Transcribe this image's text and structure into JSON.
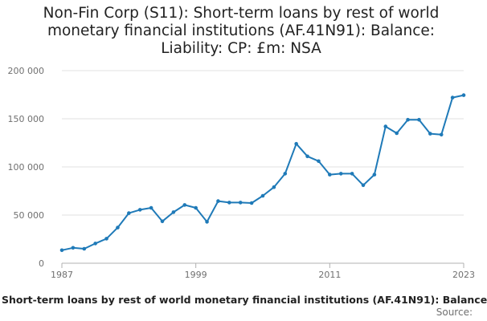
{
  "chart_data": {
    "type": "line",
    "title": "Non-Fin Corp (S11): Short-term loans by rest of world monetary financial institutions (AF.41N91): Balance: Liability: CP: £m: NSA",
    "xlabel": "",
    "ylabel": "",
    "x": [
      1987,
      1988,
      1989,
      1990,
      1991,
      1992,
      1993,
      1994,
      1995,
      1996,
      1997,
      1998,
      1999,
      2000,
      2001,
      2002,
      2003,
      2004,
      2005,
      2006,
      2007,
      2008,
      2009,
      2010,
      2011,
      2012,
      2013,
      2014,
      2015,
      2016,
      2017,
      2018,
      2019,
      2020,
      2021,
      2022,
      2023
    ],
    "series": [
      {
        "name": "Short-term loans by rest of world monetary financial institutions (AF.41N91): Balance",
        "color": "#1f7ab8",
        "values": [
          13500,
          16000,
          15000,
          20500,
          25500,
          37000,
          52000,
          55500,
          57500,
          43500,
          53000,
          60500,
          57500,
          43000,
          64500,
          63000,
          63000,
          62500,
          70000,
          79000,
          93000,
          124000,
          111000,
          106000,
          92000,
          93000,
          93000,
          81000,
          92000,
          142000,
          135000,
          149000,
          149000,
          134500,
          133500,
          172000,
          174500
        ]
      }
    ],
    "xlim": [
      1987,
      2023
    ],
    "ylim": [
      0,
      200000
    ],
    "x_ticks": [
      "1987",
      "1999",
      "2011",
      "2023"
    ],
    "x_tick_values": [
      1987,
      1999,
      2011,
      2023
    ],
    "y_ticks": [
      "0",
      "50 000",
      "100 000",
      "150 000",
      "200 000"
    ],
    "y_tick_values": [
      0,
      50000,
      100000,
      150000,
      200000
    ],
    "grid": "horizontal",
    "legend": "bottom"
  },
  "footer": {
    "source": "Source:"
  }
}
